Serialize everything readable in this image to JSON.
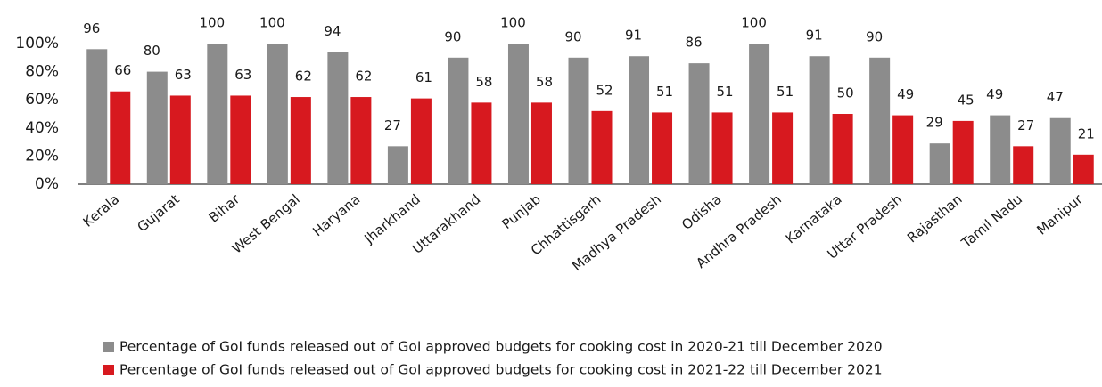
{
  "chart_data": {
    "type": "bar",
    "categories": [
      "Kerala",
      "Gujarat",
      "Bihar",
      "West Bengal",
      "Haryana",
      "Jharkhand",
      "Uttarakhand",
      "Punjab",
      "Chhattisgarh",
      "Madhya Pradesh",
      "Odisha",
      "Andhra Pradesh",
      "Karnataka",
      "Uttar Pradesh",
      "Rajasthan",
      "Tamil Nadu",
      "Manipur"
    ],
    "series": [
      {
        "name": "Percentage of GoI funds released out of GoI approved budgets for cooking cost in 2020-21 till December 2020",
        "color": "#8c8c8c",
        "values": [
          96,
          80,
          100,
          100,
          94,
          27,
          90,
          100,
          90,
          91,
          86,
          100,
          91,
          90,
          29,
          49,
          47
        ]
      },
      {
        "name": "Percentage of GoI funds released out of GoI approved budgets for cooking cost in 2021-22 till December 2021",
        "color": "#d7191f",
        "values": [
          66,
          63,
          63,
          62,
          62,
          61,
          58,
          58,
          52,
          51,
          51,
          51,
          50,
          49,
          45,
          27,
          21
        ]
      }
    ],
    "ylim": [
      0,
      100
    ],
    "yticks": [
      {
        "value": 0,
        "label": "0%"
      },
      {
        "value": 20,
        "label": "20%"
      },
      {
        "value": 40,
        "label": "40%"
      },
      {
        "value": 60,
        "label": "60%"
      },
      {
        "value": 80,
        "label": "80%"
      },
      {
        "value": 100,
        "label": "100%"
      }
    ]
  }
}
